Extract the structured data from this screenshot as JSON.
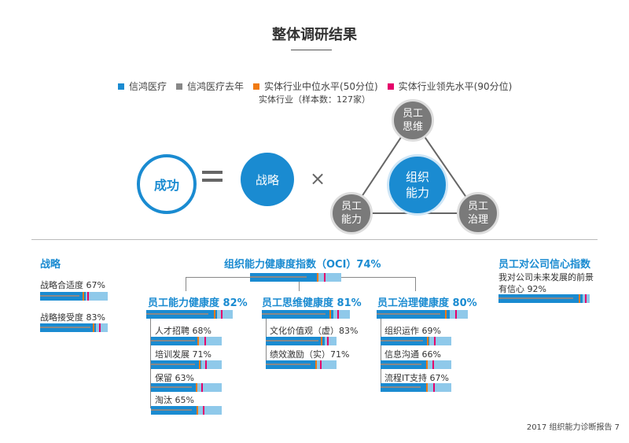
{
  "title": "整体调研结果",
  "legend": {
    "items": [
      {
        "label": "信鸿医疗",
        "color": "#1a8bd1"
      },
      {
        "label": "信鸿医疗去年",
        "color": "#888888"
      },
      {
        "label": "实体行业中位水平(50分位)",
        "color": "#f07a12"
      },
      {
        "label": "实体行业领先水平(90分位)",
        "color": "#e5006a"
      }
    ],
    "sample_note": "实体行业（样本数：127家）"
  },
  "formula": {
    "success": "成功",
    "strategy": "战略",
    "triangle": {
      "center": "组织能力",
      "top": "员工思维",
      "left": "员工能力",
      "right": "员工治理"
    }
  },
  "strategy": {
    "title": "战略",
    "items": [
      {
        "label": "战略合适度 67%"
      },
      {
        "label": "战略接受度 83%"
      }
    ]
  },
  "oci": {
    "title": "组织能力健康度指数（OCI）74%"
  },
  "employee_capability": {
    "title": "员工能力健康度 82%",
    "items": [
      {
        "label": "人才招聘 68%"
      },
      {
        "label": "培训发展 71%"
      },
      {
        "label": "保留 63%"
      },
      {
        "label": "淘汰 65%"
      }
    ]
  },
  "employee_mindset": {
    "title": "员工思维健康度 81%",
    "items": [
      {
        "label": "文化价值观（虚）83%"
      },
      {
        "label": "绩效激励（实）71%"
      }
    ]
  },
  "employee_governance": {
    "title": "员工治理健康度 80%",
    "items": [
      {
        "label": "组织运作 69%"
      },
      {
        "label": "信息沟通 66%"
      },
      {
        "label": "流程IT支持 67%"
      }
    ]
  },
  "confidence": {
    "title": "员工对公司信心指数",
    "desc_line1": "我对公司未来发展的前景",
    "desc_line2": "有信心 92%"
  },
  "bars": [
    {
      "id": "strategy-fit",
      "value": 0.67,
      "prev": 0.58,
      "median": 0.63,
      "lead": 0.7
    },
    {
      "id": "strategy-accept",
      "value": 0.83,
      "prev": 0.74,
      "median": 0.78,
      "lead": 0.87
    },
    {
      "id": "oci",
      "value": 0.74,
      "prev": 0.62,
      "median": 0.73,
      "lead": 0.81
    },
    {
      "id": "capability",
      "value": 0.82,
      "prev": 0.72,
      "median": 0.78,
      "lead": 0.86
    },
    {
      "id": "recruit",
      "value": 0.68,
      "prev": 0.62,
      "median": 0.66,
      "lead": 0.76
    },
    {
      "id": "training",
      "value": 0.71,
      "prev": 0.62,
      "median": 0.68,
      "lead": 0.77
    },
    {
      "id": "retention",
      "value": 0.63,
      "prev": 0.58,
      "median": 0.63,
      "lead": 0.71
    },
    {
      "id": "elimination",
      "value": 0.65,
      "prev": 0.58,
      "median": 0.64,
      "lead": 0.73
    },
    {
      "id": "mindset",
      "value": 0.81,
      "prev": 0.72,
      "median": 0.77,
      "lead": 0.86
    },
    {
      "id": "culture",
      "value": 0.83,
      "prev": 0.74,
      "median": 0.78,
      "lead": 0.87
    },
    {
      "id": "performance",
      "value": 0.71,
      "prev": 0.63,
      "median": 0.7,
      "lead": 0.77
    },
    {
      "id": "governance",
      "value": 0.8,
      "prev": 0.7,
      "median": 0.75,
      "lead": 0.86
    },
    {
      "id": "operation",
      "value": 0.69,
      "prev": 0.6,
      "median": 0.66,
      "lead": 0.76
    },
    {
      "id": "communication",
      "value": 0.66,
      "prev": 0.58,
      "median": 0.64,
      "lead": 0.73
    },
    {
      "id": "process-it",
      "value": 0.67,
      "prev": 0.57,
      "median": 0.64,
      "lead": 0.74
    },
    {
      "id": "confidence",
      "value": 0.92,
      "prev": 0.82,
      "median": 0.88,
      "lead": 0.95
    }
  ],
  "footer": "2017 组织能力诊断报告 7"
}
